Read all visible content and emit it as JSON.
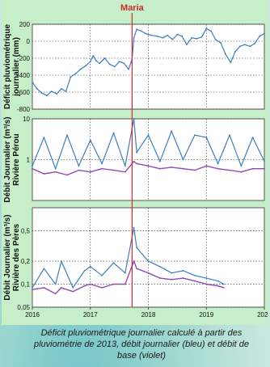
{
  "caption": "Déficit pluviométrique journalier calculé à partir des pluviométrie de 2013, débit journalier (bleu) et débit de base (violet)",
  "marker_label": "Maria",
  "colors": {
    "flow": "#3a7ec2",
    "baseflow": "#8e4bb5",
    "marker": "#d42a2a",
    "panel": "#c6eec8",
    "background": "#c9e7e0"
  },
  "chart_data": [
    {
      "type": "line",
      "ylabel_lines": [
        "Déficit pluviométrique",
        "journalier (mm)"
      ],
      "ylim": [
        -800,
        200
      ],
      "yticks": [
        200,
        0,
        -200,
        -400,
        -600,
        -800
      ],
      "ytick_labels": [
        "200",
        "0",
        "-200",
        "-400",
        "-600",
        "-800"
      ],
      "xlim": [
        2016,
        2020
      ],
      "series": [
        {
          "color": "#3a7ec2",
          "x": [
            2016.0,
            2016.08,
            2016.16,
            2016.25,
            2016.33,
            2016.42,
            2016.5,
            2016.58,
            2016.66,
            2016.75,
            2016.83,
            2016.92,
            2017.0,
            2017.05,
            2017.1,
            2017.16,
            2017.25,
            2017.33,
            2017.42,
            2017.5,
            2017.58,
            2017.66,
            2017.7,
            2017.72,
            2017.75,
            2017.8,
            2017.88,
            2017.95,
            2018.05,
            2018.15,
            2018.25,
            2018.33,
            2018.42,
            2018.5,
            2018.58,
            2018.66,
            2018.75,
            2018.83,
            2018.92,
            2019.0,
            2019.08,
            2019.16,
            2019.25,
            2019.33,
            2019.42,
            2019.5,
            2019.58,
            2019.66,
            2019.75,
            2019.83,
            2019.92,
            2020.0
          ],
          "y": [
            -480,
            -560,
            -610,
            -640,
            -590,
            -620,
            -560,
            -590,
            -420,
            -380,
            -330,
            -290,
            -240,
            -170,
            -230,
            -260,
            -200,
            -270,
            -300,
            -240,
            -260,
            -330,
            -250,
            -210,
            40,
            140,
            120,
            90,
            70,
            60,
            40,
            70,
            20,
            80,
            60,
            -40,
            40,
            30,
            50,
            150,
            120,
            20,
            -20,
            -150,
            -250,
            -120,
            -60,
            -40,
            -60,
            -30,
            60,
            90
          ]
        }
      ]
    },
    {
      "type": "line",
      "ylabel_lines": [
        "Débit Journalier (m³/s)",
        "Rivière Pérou"
      ],
      "yscale": "log",
      "ylim": [
        0.1,
        10
      ],
      "yticks": [
        10,
        1
      ],
      "ytick_labels": [
        "10",
        "1"
      ],
      "xlim": [
        2016,
        2020
      ],
      "series": [
        {
          "color": "#3a7ec2",
          "x": [
            2016.0,
            2016.2,
            2016.4,
            2016.6,
            2016.8,
            2017.0,
            2017.2,
            2017.4,
            2017.6,
            2017.75,
            2017.8,
            2018.0,
            2018.2,
            2018.4,
            2018.6,
            2018.8,
            2019.0,
            2019.2,
            2019.4,
            2019.6,
            2019.8,
            2020.0
          ],
          "y": [
            0.7,
            3.5,
            0.6,
            4.0,
            0.7,
            3.0,
            0.8,
            4.5,
            0.7,
            10,
            1.5,
            4.0,
            0.9,
            5.0,
            1.0,
            4.0,
            3.5,
            0.8,
            4.0,
            0.7,
            3.5,
            0.9
          ]
        },
        {
          "color": "#8e4bb5",
          "x": [
            2016.0,
            2016.2,
            2016.4,
            2016.6,
            2016.8,
            2017.0,
            2017.2,
            2017.4,
            2017.6,
            2017.75,
            2017.8,
            2018.0,
            2018.2,
            2018.4,
            2018.6,
            2018.8,
            2019.0,
            2019.2,
            2019.4,
            2019.6,
            2019.8,
            2020.0
          ],
          "y": [
            0.6,
            0.45,
            0.5,
            0.42,
            0.55,
            0.5,
            0.6,
            0.55,
            0.5,
            0.9,
            0.8,
            0.7,
            0.6,
            0.65,
            0.6,
            0.55,
            0.7,
            0.6,
            0.55,
            0.5,
            0.6,
            0.6
          ]
        }
      ]
    },
    {
      "type": "line",
      "ylabel_lines": [
        "Débit Journalier (m³/s)",
        "Rivière des Pères"
      ],
      "yscale": "log",
      "ylim": [
        0.05,
        1
      ],
      "yticks": [
        0.5,
        0.2,
        0.1,
        0.05
      ],
      "ytick_labels": [
        "0,5",
        "0,2",
        "0,1",
        "0,05"
      ],
      "xlim": [
        2016,
        2020
      ],
      "xticks": [
        2016,
        2017,
        2018,
        2019,
        2020
      ],
      "xtick_labels": [
        "2016",
        "2017",
        "2018",
        "2019",
        "2020"
      ],
      "series": [
        {
          "color": "#3a7ec2",
          "x": [
            2016.0,
            2016.2,
            2016.4,
            2016.5,
            2016.7,
            2016.9,
            2017.0,
            2017.2,
            2017.4,
            2017.6,
            2017.75,
            2017.8,
            2018.0,
            2018.2,
            2018.4,
            2018.6,
            2018.8,
            2019.0,
            2019.2,
            2019.3
          ],
          "y": [
            0.09,
            0.16,
            0.1,
            0.2,
            0.09,
            0.15,
            0.17,
            0.13,
            0.19,
            0.14,
            0.55,
            0.3,
            0.2,
            0.17,
            0.14,
            0.15,
            0.13,
            0.12,
            0.11,
            0.1
          ]
        },
        {
          "color": "#8e4bb5",
          "x": [
            2016.0,
            2016.2,
            2016.4,
            2016.5,
            2016.7,
            2016.9,
            2017.0,
            2017.2,
            2017.4,
            2017.6,
            2017.75,
            2017.8,
            2018.0,
            2018.2,
            2018.4,
            2018.6,
            2018.8,
            2019.0,
            2019.2,
            2019.3
          ],
          "y": [
            0.085,
            0.09,
            0.075,
            0.09,
            0.08,
            0.095,
            0.1,
            0.09,
            0.1,
            0.1,
            0.2,
            0.16,
            0.14,
            0.12,
            0.115,
            0.12,
            0.11,
            0.1,
            0.095,
            0.09
          ]
        }
      ]
    }
  ],
  "marker": {
    "x": 2017.72
  }
}
